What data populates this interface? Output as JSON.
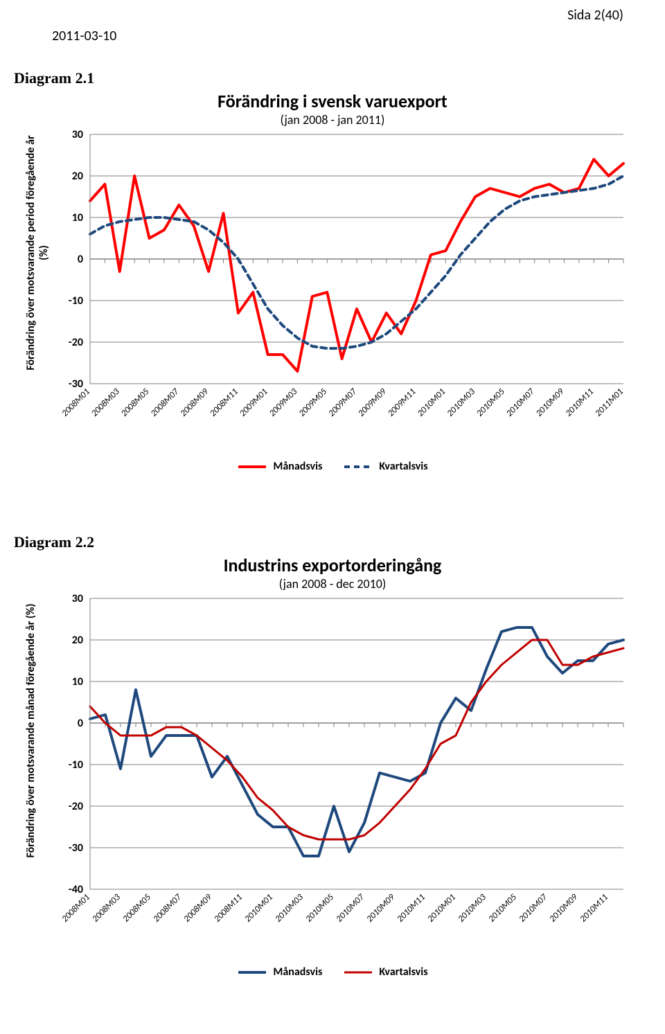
{
  "header": {
    "date": "2011-03-10",
    "page_label": "Sida 2(40)"
  },
  "diagram1": {
    "label": "Diagram 2.1",
    "title": "Förändring i svensk varuexport",
    "subtitle": "(jan 2008 - jan 2011)",
    "ylabel": "Förändring över motsvarande period föregående år (%)",
    "type": "line",
    "ylim": [
      -30,
      30
    ],
    "ytick_step": 10,
    "title_fontsize": 26,
    "subtitle_fontsize": 18,
    "label_fontsize": 16,
    "grid_color": "#808080",
    "background_color": "#ffffff",
    "xlabels": [
      "2008M01",
      "2008M03",
      "2008M05",
      "2008M07",
      "2008M09",
      "2008M11",
      "2009M01",
      "2009M03",
      "2009M05",
      "2009M07",
      "2009M09",
      "2009M11",
      "2010M01",
      "2010M03",
      "2010M05",
      "2010M07",
      "2010M09",
      "2010M11",
      "2011M01"
    ],
    "series": {
      "monthly": {
        "label": "Månadsvis",
        "color": "#ff0000",
        "width": 4,
        "dash": "none",
        "values": [
          14,
          18,
          -3,
          20,
          5,
          7,
          13,
          8,
          -3,
          11,
          -13,
          -8,
          -23,
          -23,
          -27,
          -9,
          -8,
          -24,
          -12,
          -20,
          -13,
          -18,
          -10,
          1,
          2,
          9,
          15,
          17,
          16,
          15,
          17,
          18,
          16,
          17,
          24,
          20,
          23
        ]
      },
      "quarterly": {
        "label": "Kvartalsvis",
        "color": "#1f497d",
        "width": 4,
        "dash": "8,6",
        "values": [
          6,
          8,
          9,
          9.5,
          10,
          10,
          9.5,
          9,
          7,
          4,
          0,
          -6,
          -12,
          -16,
          -19,
          -21,
          -21.5,
          -21.5,
          -21,
          -20,
          -18,
          -15,
          -12,
          -8,
          -4,
          1,
          5,
          9,
          12,
          14,
          15,
          15.5,
          16,
          16.5,
          17,
          18,
          20
        ]
      }
    }
  },
  "diagram2": {
    "label": "Diagram 2.2",
    "title": "Industrins exportorderingång",
    "subtitle": "(jan 2008 - dec 2010)",
    "ylabel": "Förändring över motsvarande månad föregående år (%)",
    "type": "line",
    "ylim": [
      -40,
      30
    ],
    "ytick_step": 10,
    "title_fontsize": 26,
    "subtitle_fontsize": 18,
    "label_fontsize": 16,
    "grid_color": "#808080",
    "background_color": "#ffffff",
    "xlabels": [
      "2008M01",
      "2008M03",
      "2008M05",
      "2008M07",
      "2008M09",
      "2008M11",
      "2010M01",
      "2010M03",
      "2010M05",
      "2010M07",
      "2010M09",
      "2010M11",
      "2010M01",
      "2010M03",
      "2010M05",
      "2010M07",
      "2010M09",
      "2010M11"
    ],
    "series": {
      "monthly": {
        "label": "Månadsvis",
        "color": "#1f497d",
        "width": 4,
        "dash": "none",
        "values": [
          1,
          2,
          -11,
          8,
          -8,
          -3,
          -3,
          -3,
          -13,
          -8,
          -15,
          -22,
          -25,
          -25,
          -32,
          -32,
          -20,
          -31,
          -24,
          -12,
          -13,
          -14,
          -12,
          0,
          6,
          3,
          13,
          22,
          23,
          23,
          16,
          12,
          15,
          15,
          19,
          20
        ]
      },
      "quarterly": {
        "label": "Kvartalsvis",
        "color": "#c00000",
        "width": 3,
        "dash": "none",
        "values": [
          4,
          0,
          -3,
          -3,
          -3,
          -1,
          -1,
          -3,
          -6,
          -9,
          -13,
          -18,
          -21,
          -25,
          -27,
          -28,
          -28,
          -28,
          -27,
          -24,
          -20,
          -16,
          -11,
          -5,
          -3,
          5,
          10,
          14,
          17,
          20,
          20,
          14,
          14,
          16,
          17,
          18
        ]
      }
    }
  }
}
